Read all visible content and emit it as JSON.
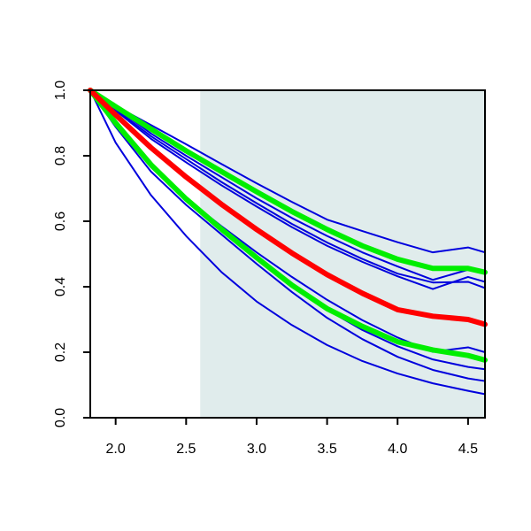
{
  "chart_data": {
    "type": "line",
    "title": "",
    "xlabel": "",
    "ylabel": "",
    "xlim": [
      1.82,
      4.62
    ],
    "ylim": [
      0.0,
      1.0
    ],
    "x_ticks": [
      2.0,
      2.5,
      3.0,
      3.5,
      4.0,
      4.5
    ],
    "x_tick_labels": [
      "2.0",
      "2.5",
      "3.0",
      "3.5",
      "4.0",
      "4.5"
    ],
    "y_ticks": [
      0.0,
      0.2,
      0.4,
      0.6,
      0.8,
      1.0
    ],
    "y_tick_labels": [
      "0.0",
      "0.2",
      "0.4",
      "0.6",
      "0.8",
      "1.0"
    ],
    "grid": false,
    "legend": "none",
    "shaded_region": {
      "x_from": 2.6,
      "x_to": 4.62,
      "color": "#e0ecec"
    },
    "x": [
      1.82,
      2.0,
      2.25,
      2.5,
      2.75,
      3.0,
      3.25,
      3.5,
      3.75,
      4.0,
      4.25,
      4.5,
      4.62
    ],
    "series": [
      {
        "color": "#0000dd",
        "width": 2,
        "values": [
          1.0,
          0.952,
          0.894,
          0.835,
          0.775,
          0.716,
          0.659,
          0.605,
          0.57,
          0.536,
          0.505,
          0.52,
          0.505
        ]
      },
      {
        "color": "#0000dd",
        "width": 2,
        "values": [
          1.0,
          0.948,
          0.868,
          0.8,
          0.735,
          0.67,
          0.61,
          0.555,
          0.505,
          0.462,
          0.421,
          0.452,
          0.44
        ]
      },
      {
        "color": "#0000dd",
        "width": 2,
        "values": [
          1.0,
          0.942,
          0.86,
          0.79,
          0.72,
          0.655,
          0.592,
          0.535,
          0.485,
          0.44,
          0.413,
          0.415,
          0.396
        ]
      },
      {
        "color": "#0000dd",
        "width": 2,
        "values": [
          1.0,
          0.938,
          0.852,
          0.78,
          0.71,
          0.645,
          0.582,
          0.525,
          0.476,
          0.432,
          0.393,
          0.43,
          0.415
        ]
      },
      {
        "color": "#0000dd",
        "width": 2,
        "values": [
          1.0,
          0.9,
          0.77,
          0.67,
          0.585,
          0.505,
          0.43,
          0.36,
          0.298,
          0.245,
          0.201,
          0.215,
          0.2
        ]
      },
      {
        "color": "#0000dd",
        "width": 2,
        "values": [
          1.0,
          0.895,
          0.765,
          0.665,
          0.578,
          0.49,
          0.405,
          0.33,
          0.268,
          0.218,
          0.178,
          0.155,
          0.148
        ]
      },
      {
        "color": "#0000dd",
        "width": 2,
        "values": [
          1.0,
          0.888,
          0.752,
          0.65,
          0.56,
          0.47,
          0.384,
          0.305,
          0.24,
          0.186,
          0.146,
          0.12,
          0.112
        ]
      },
      {
        "color": "#0000dd",
        "width": 2,
        "values": [
          1.0,
          0.84,
          0.68,
          0.555,
          0.445,
          0.355,
          0.283,
          0.222,
          0.173,
          0.135,
          0.105,
          0.082,
          0.072
        ]
      },
      {
        "color": "#00ee00",
        "width": 6,
        "values": [
          1.0,
          0.95,
          0.882,
          0.815,
          0.752,
          0.69,
          0.63,
          0.575,
          0.525,
          0.484,
          0.456,
          0.456,
          0.444
        ]
      },
      {
        "color": "#00ee00",
        "width": 6,
        "values": [
          1.0,
          0.9,
          0.773,
          0.668,
          0.576,
          0.489,
          0.405,
          0.333,
          0.279,
          0.232,
          0.207,
          0.19,
          0.176
        ]
      },
      {
        "color": "#ff0000",
        "width": 6,
        "values": [
          1.0,
          0.925,
          0.825,
          0.735,
          0.652,
          0.575,
          0.503,
          0.437,
          0.38,
          0.33,
          0.31,
          0.3,
          0.285
        ]
      }
    ]
  }
}
